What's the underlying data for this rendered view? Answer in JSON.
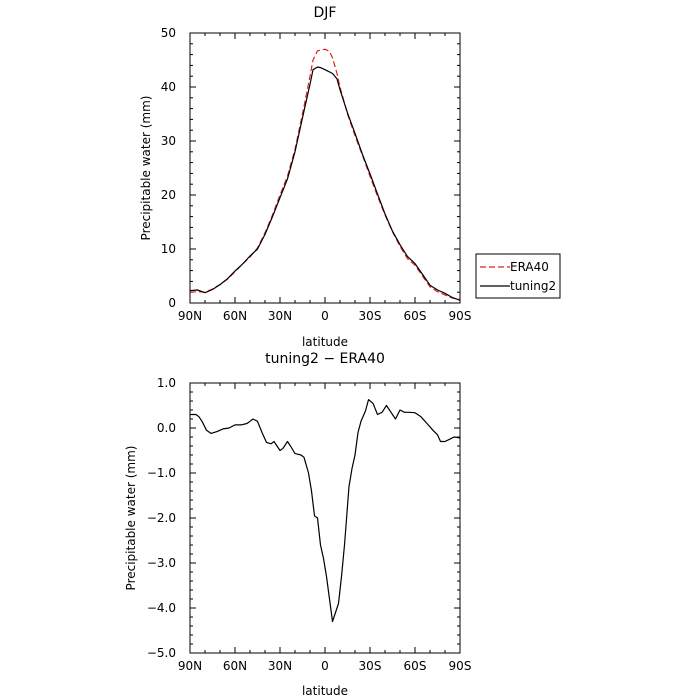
{
  "chart_data": [
    {
      "type": "line",
      "title": "DJF",
      "xlabel": "latitude",
      "ylabel": "Precipitable water  (mm)",
      "xlim": [
        90,
        -90
      ],
      "ylim": [
        0,
        50
      ],
      "x_ticks": [
        90,
        60,
        30,
        0,
        -30,
        -60,
        -90
      ],
      "x_tick_labels": [
        "90N",
        "60N",
        "30N",
        "0",
        "30S",
        "60S",
        "90S"
      ],
      "y_ticks": [
        0,
        10,
        20,
        30,
        40,
        50
      ],
      "y_tick_labels": [
        "0",
        "10",
        "20",
        "30",
        "40",
        "50"
      ],
      "legend_position": "right, outside",
      "series": [
        {
          "name": "ERA40",
          "color": "#e02020",
          "style": "dashed",
          "x": [
            90,
            85,
            80,
            75,
            70,
            65,
            60,
            55,
            50,
            45,
            40,
            35,
            30,
            25,
            20,
            15,
            10,
            8,
            5,
            3,
            0,
            -3,
            -5,
            -8,
            -10,
            -15,
            -20,
            -25,
            -30,
            -35,
            -40,
            -45,
            -50,
            -55,
            -60,
            -65,
            -70,
            -75,
            -80,
            -85,
            -90
          ],
          "values": [
            2.0,
            2.1,
            2.0,
            2.6,
            3.4,
            4.4,
            5.8,
            7.2,
            8.5,
            10.2,
            13.0,
            16.3,
            20.0,
            23.5,
            28.5,
            35.0,
            42.0,
            45.0,
            46.7,
            46.8,
            47.0,
            46.6,
            45.4,
            42.5,
            40.0,
            35.0,
            31.0,
            27.3,
            23.5,
            19.8,
            16.3,
            13.2,
            10.5,
            8.2,
            7.0,
            5.0,
            3.0,
            2.1,
            1.5,
            0.9,
            0.7
          ]
        },
        {
          "name": "tuning2",
          "color": "#000000",
          "style": "solid",
          "x": [
            90,
            85,
            80,
            75,
            70,
            65,
            60,
            55,
            50,
            45,
            40,
            35,
            30,
            25,
            20,
            15,
            10,
            8,
            5,
            3,
            0,
            -3,
            -5,
            -8,
            -10,
            -15,
            -20,
            -25,
            -30,
            -35,
            -40,
            -45,
            -50,
            -55,
            -60,
            -65,
            -70,
            -75,
            -80,
            -85,
            -90
          ],
          "values": [
            2.3,
            2.4,
            1.9,
            2.5,
            3.4,
            4.5,
            5.9,
            7.2,
            8.7,
            10.0,
            12.7,
            16.0,
            19.5,
            23.0,
            28.0,
            34.3,
            40.5,
            43.2,
            43.7,
            43.6,
            43.2,
            42.8,
            42.5,
            41.5,
            39.5,
            35.2,
            31.4,
            27.5,
            23.9,
            20.2,
            16.5,
            13.3,
            10.8,
            8.6,
            7.3,
            5.3,
            3.3,
            2.4,
            1.8,
            1.0,
            0.5
          ]
        }
      ]
    },
    {
      "type": "line",
      "title": "tuning2 − ERA40",
      "xlabel": "latitude",
      "ylabel": "Precipitable water  (mm)",
      "xlim": [
        90,
        -90
      ],
      "ylim": [
        -5.0,
        1.0
      ],
      "x_ticks": [
        90,
        60,
        30,
        0,
        -30,
        -60,
        -90
      ],
      "x_tick_labels": [
        "90N",
        "60N",
        "30N",
        "0",
        "30S",
        "60S",
        "90S"
      ],
      "y_ticks": [
        1.0,
        0.0,
        -1.0,
        -2.0,
        -3.0,
        -4.0,
        -5.0
      ],
      "y_tick_labels": [
        "1.0",
        "0.0",
        "−1.0",
        "−2.0",
        "−3.0",
        "−4.0",
        "−5.0"
      ],
      "series": [
        {
          "color": "#000000",
          "style": "solid",
          "x": [
            90,
            86,
            84,
            82,
            79,
            76,
            72,
            68,
            64,
            60,
            56,
            52,
            50,
            48,
            45,
            42,
            39,
            36,
            34,
            30,
            28,
            25,
            23,
            20,
            16,
            14,
            11,
            9,
            7,
            5,
            3,
            1,
            0,
            -1,
            -3,
            -5,
            -7,
            -9,
            -11,
            -13,
            -16,
            -18,
            -20,
            -22,
            -24,
            -27,
            -29,
            -32,
            -35,
            -38,
            -41,
            -44,
            -47,
            -50,
            -53,
            -56,
            -60,
            -64,
            -68,
            -72,
            -75,
            -77,
            -80,
            -83,
            -86,
            -90
          ],
          "values": [
            0.3,
            0.3,
            0.25,
            0.15,
            -0.05,
            -0.12,
            -0.08,
            -0.02,
            0.0,
            0.07,
            0.07,
            0.1,
            0.15,
            0.2,
            0.15,
            -0.1,
            -0.32,
            -0.35,
            -0.3,
            -0.5,
            -0.45,
            -0.3,
            -0.4,
            -0.57,
            -0.6,
            -0.65,
            -1.0,
            -1.4,
            -1.95,
            -2.0,
            -2.6,
            -2.9,
            -3.1,
            -3.3,
            -3.8,
            -4.3,
            -4.1,
            -3.9,
            -3.3,
            -2.6,
            -1.3,
            -0.9,
            -0.6,
            -0.1,
            0.15,
            0.38,
            0.63,
            0.55,
            0.3,
            0.35,
            0.5,
            0.35,
            0.2,
            0.4,
            0.35,
            0.35,
            0.34,
            0.25,
            0.1,
            -0.05,
            -0.15,
            -0.3,
            -0.3,
            -0.25,
            -0.2,
            -0.22
          ]
        }
      ]
    }
  ]
}
